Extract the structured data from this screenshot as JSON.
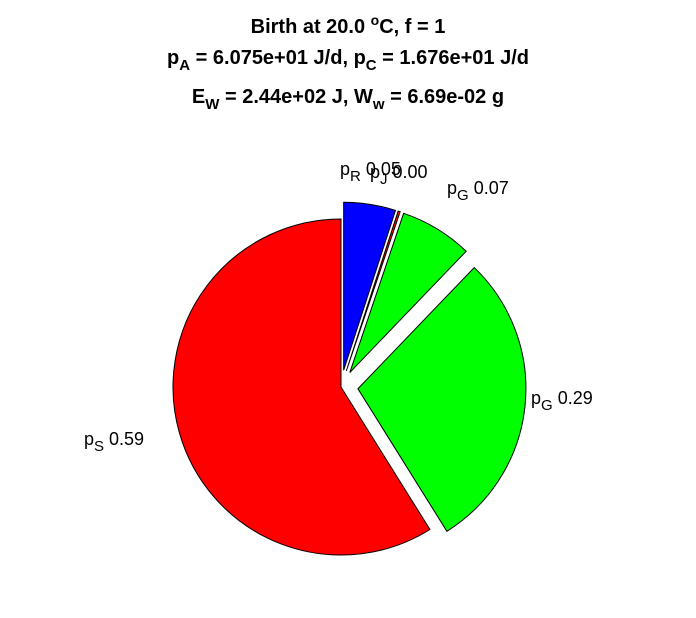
{
  "chart_data": {
    "type": "pie",
    "title": {
      "line1": {
        "a": "Birth at 20.0 ",
        "sup": "o",
        "b": "C, f = 1"
      },
      "line2": {
        "p1": "p",
        "s1": "A",
        "v1": " = 6.075e+01 J/d, ",
        "p2": "p",
        "s2": "C",
        "v2": " = 1.676e+01 J/d"
      },
      "line3": {
        "p1": "E",
        "s1": "W",
        "v1": " = 2.44e+02 J, ",
        "p2": "W",
        "s2": "w",
        "v2": " = 6.69e-02 g"
      }
    },
    "slices": [
      {
        "sym": "p",
        "sub": "R",
        "value_text": "0.05",
        "value": 0.05,
        "color": "#0000ff"
      },
      {
        "sym": "p",
        "sub": "J",
        "value_text": "0.00",
        "value": 0.002,
        "color": "#ff0000"
      },
      {
        "sym": "p",
        "sub": "G",
        "value_text": "0.07",
        "value": 0.07,
        "color": "#00ff00"
      },
      {
        "sym": "p",
        "sub": "G",
        "value_text": "0.29",
        "value": 0.29,
        "color": "#00ff00"
      },
      {
        "sym": "p",
        "sub": "S",
        "value_text": "0.59",
        "value": 0.59,
        "color": "#ff0000"
      }
    ],
    "explode": [
      true,
      true,
      true,
      true,
      false
    ]
  }
}
